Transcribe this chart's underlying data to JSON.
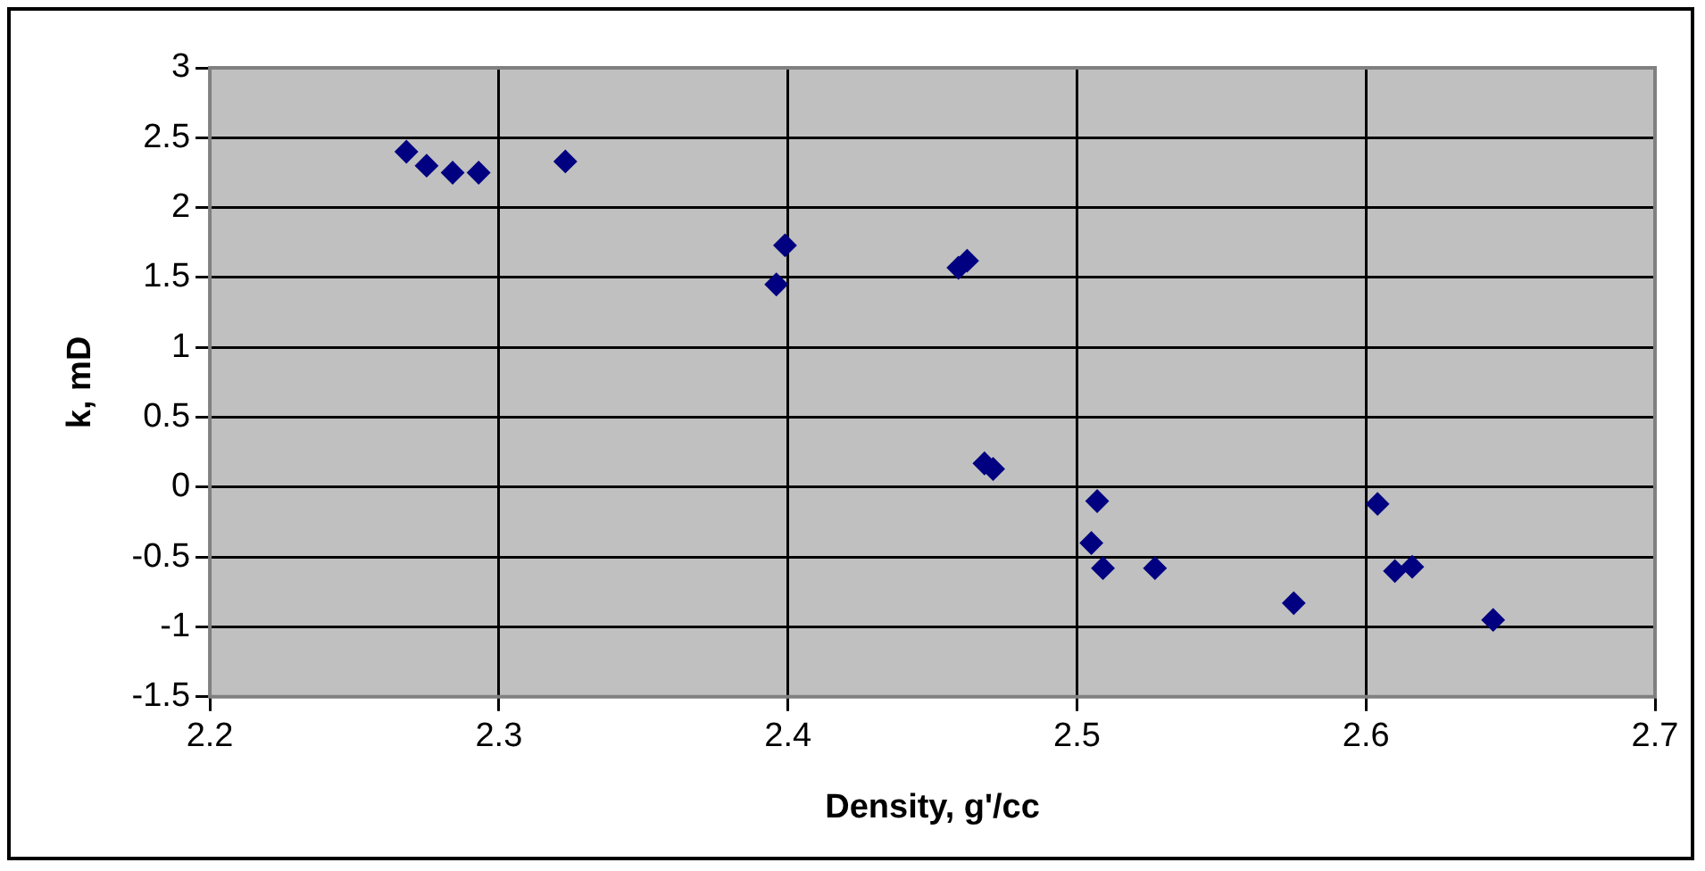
{
  "chart_data": {
    "type": "scatter",
    "xlabel": "Density, g'/cc",
    "ylabel": "k, mD",
    "series": [
      {
        "color": "#000080",
        "x": [
          2.268,
          2.275,
          2.284,
          2.293,
          2.323,
          2.396,
          2.399,
          2.459,
          2.462,
          2.468,
          2.471,
          2.505,
          2.507,
          2.509,
          2.527,
          2.575,
          2.604,
          2.61,
          2.616,
          2.644
        ],
        "values": [
          2.4,
          2.3,
          2.25,
          2.25,
          2.33,
          1.45,
          1.73,
          1.57,
          1.62,
          0.17,
          0.13,
          -0.4,
          -0.1,
          -0.58,
          -0.58,
          -0.83,
          -0.12,
          -0.6,
          -0.57,
          -0.95
        ]
      }
    ],
    "xlim": [
      2.2,
      2.7
    ],
    "xticks": [
      2.2,
      2.3,
      2.4,
      2.5,
      2.6,
      2.7
    ],
    "ylim": [
      -1.5,
      3
    ],
    "yticks": [
      -1.5,
      -1,
      -0.5,
      0,
      0.5,
      1,
      1.5,
      2,
      2.5,
      3
    ],
    "grid": true,
    "legend": false,
    "marker": "diamond"
  }
}
